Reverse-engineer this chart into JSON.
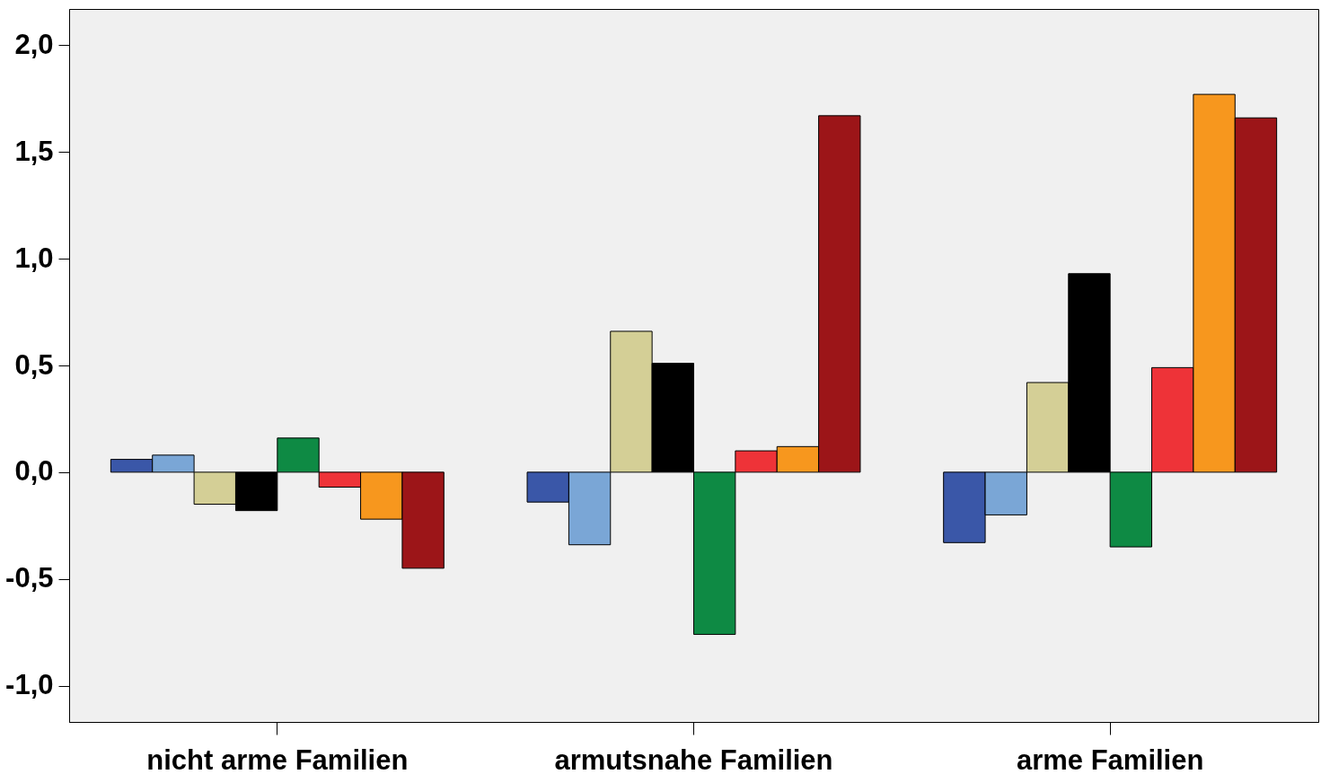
{
  "chart_data": {
    "type": "bar",
    "categories": [
      "nicht arme Familien",
      "armutsnahe Familien",
      "arme Familien"
    ],
    "series": [
      {
        "color": "#3a57a8",
        "values": [
          0.06,
          -0.14,
          -0.33
        ]
      },
      {
        "color": "#7aa6d6",
        "values": [
          0.08,
          -0.34,
          -0.2
        ]
      },
      {
        "color": "#d4cf96",
        "values": [
          -0.15,
          0.66,
          0.42
        ]
      },
      {
        "color": "#000000",
        "values": [
          -0.18,
          0.51,
          0.93
        ]
      },
      {
        "color": "#0e8a44",
        "values": [
          0.16,
          -0.76,
          -0.35
        ]
      },
      {
        "color": "#ee3338",
        "values": [
          -0.07,
          0.1,
          0.49
        ]
      },
      {
        "color": "#f7971e",
        "values": [
          -0.22,
          0.12,
          1.77
        ]
      },
      {
        "color": "#9c1518",
        "values": [
          -0.45,
          1.67,
          1.66
        ]
      }
    ],
    "ylim": [
      -1.17,
      2.17
    ],
    "yticks": [
      {
        "value": -1,
        "label": "-1,0"
      },
      {
        "value": -0.5,
        "label": "-0,5"
      },
      {
        "value": 0,
        "label": "0,0"
      },
      {
        "value": 0.5,
        "label": "0,5"
      },
      {
        "value": 1,
        "label": "1,0"
      },
      {
        "value": 1.5,
        "label": "1,5"
      },
      {
        "value": 2,
        "label": "2,0"
      }
    ],
    "grid": false,
    "legend": false
  }
}
